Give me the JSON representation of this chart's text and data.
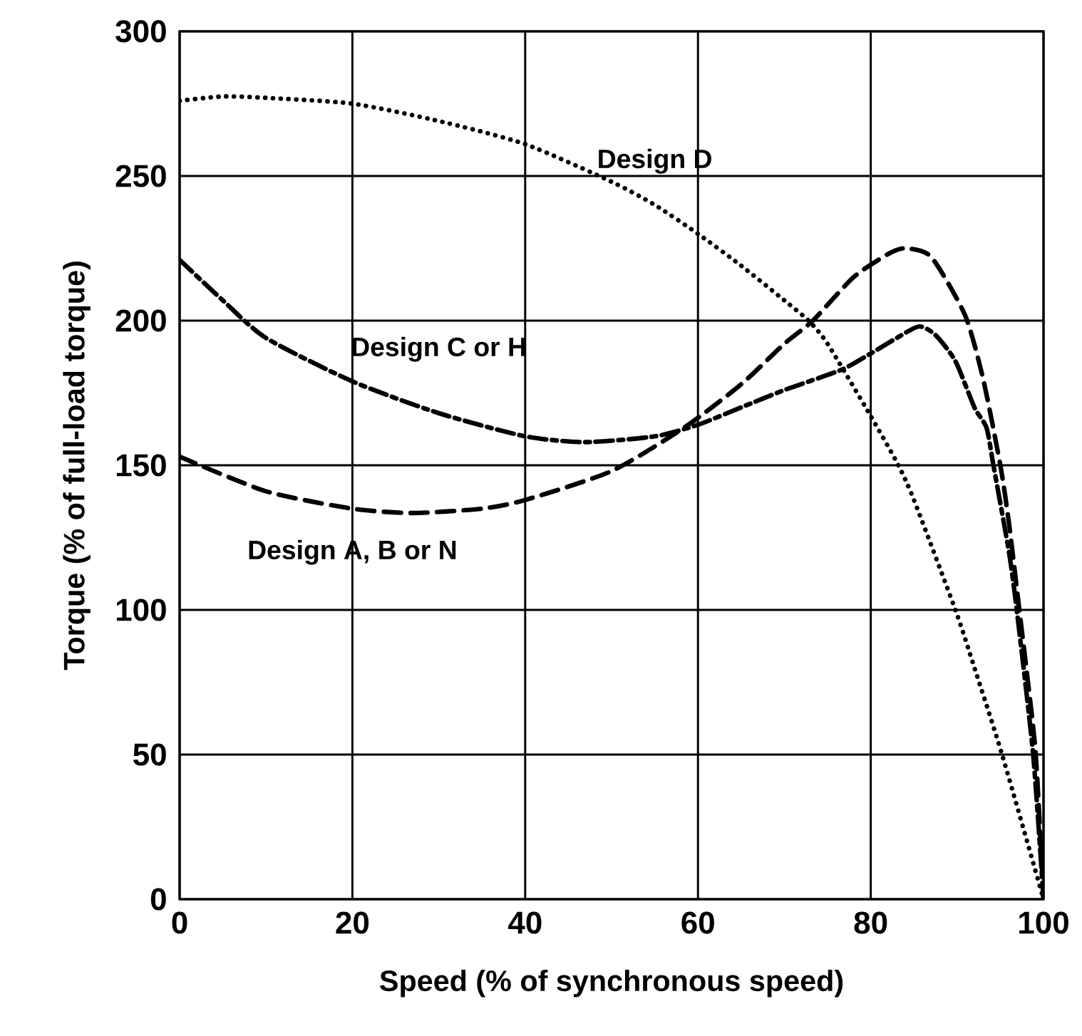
{
  "chart_data": {
    "type": "line",
    "xlabel": "Speed (% of synchronous speed)",
    "ylabel": "Torque (% of full-load torque)",
    "xlim": [
      0,
      100
    ],
    "ylim": [
      0,
      300
    ],
    "xticks": [
      0,
      20,
      40,
      60,
      80,
      100
    ],
    "yticks": [
      0,
      50,
      100,
      150,
      200,
      250,
      300
    ],
    "grid": true,
    "legend": false,
    "marker": "none",
    "series": [
      {
        "name": "Design A, B or N",
        "color": "#000000",
        "line_style": "dashed",
        "x": [
          0,
          10,
          20,
          27,
          35,
          40,
          50,
          58.4,
          65,
          70,
          73.3,
          78,
          82,
          84,
          87,
          90.9,
          93,
          95,
          96,
          97.2,
          98,
          99.1,
          100
        ],
        "values": [
          153,
          141,
          135,
          133.5,
          135,
          138,
          148,
          163,
          178,
          192,
          200,
          215,
          223,
          225,
          222,
          202,
          180,
          150,
          130,
          100,
          80,
          50,
          0
        ]
      },
      {
        "name": "Design C or H",
        "color": "#000000",
        "line_style": "dashdot",
        "x": [
          0,
          5,
          10,
          20,
          30,
          40,
          47,
          55,
          60,
          65,
          70,
          76.6,
          80.2,
          83,
          85.6,
          87.5,
          89.8,
          92,
          93.4,
          94.2,
          96,
          96.9,
          98.8,
          100
        ],
        "values": [
          221,
          207,
          194,
          179,
          168,
          160,
          158,
          160,
          164,
          170,
          176,
          183,
          189,
          194,
          198,
          195,
          186,
          170,
          163,
          150,
          120,
          100,
          50,
          0
        ]
      },
      {
        "name": "Design D",
        "color": "#000000",
        "line_style": "dotted",
        "x": [
          0,
          5,
          10,
          20,
          30,
          40,
          50,
          55,
          60,
          65,
          70,
          72.8,
          75,
          80,
          83.2,
          85,
          89.8,
          92,
          95.2,
          100
        ],
        "values": [
          276,
          277.5,
          277,
          275,
          269,
          261,
          248,
          240,
          230,
          219,
          207,
          200,
          192,
          167,
          150,
          138,
          100,
          80,
          50,
          0
        ]
      }
    ]
  }
}
